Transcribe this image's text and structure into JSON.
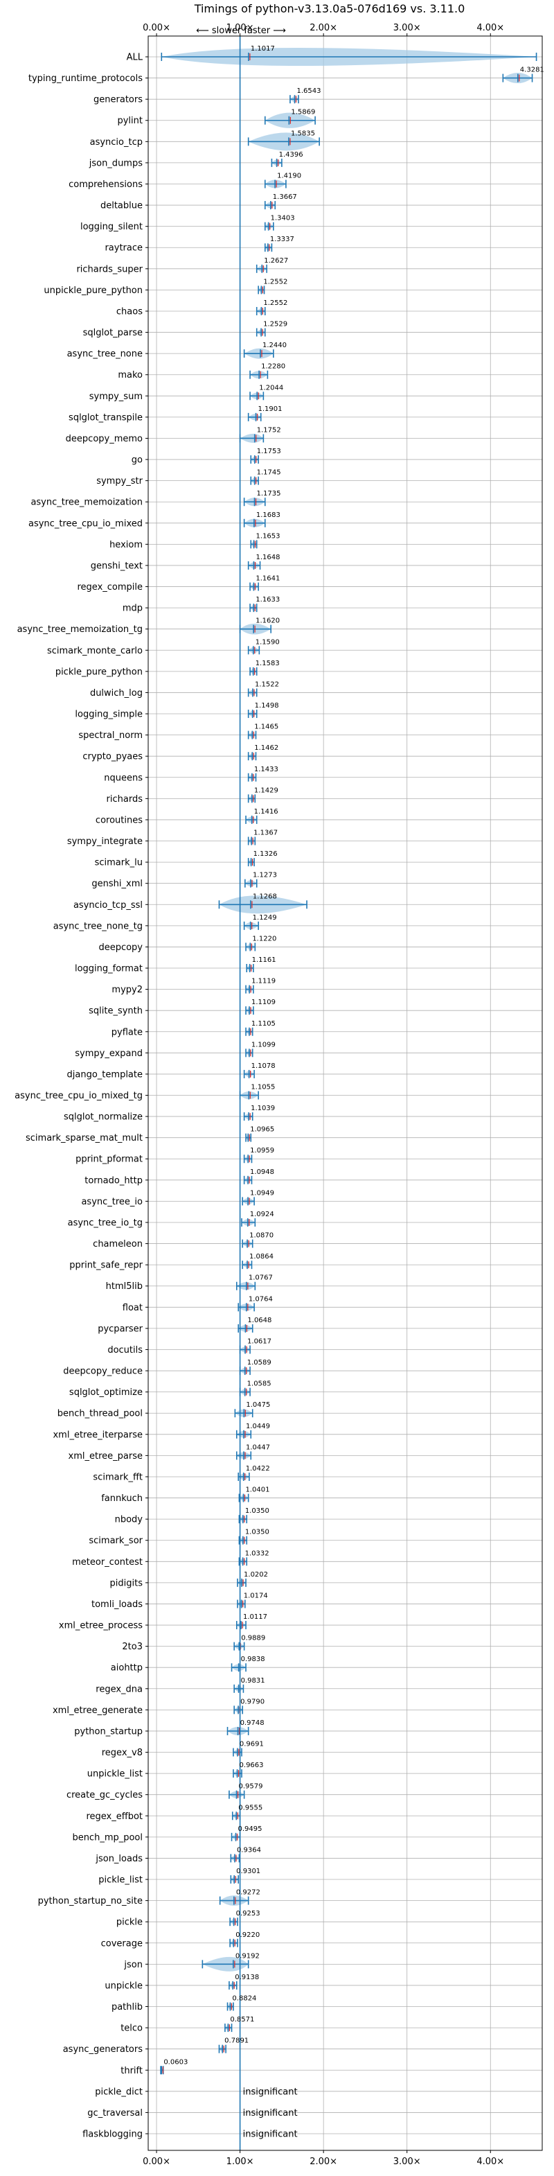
{
  "chart_data": {
    "type": "violin",
    "title": "Timings of python-v3.13.0a5-076d169 vs. 3.11.0",
    "direction_note": "⟵ slower   faster ⟶",
    "xlim": [
      -0.1,
      4.62
    ],
    "xticks": [
      0,
      1,
      2,
      3,
      4
    ],
    "xtick_labels": [
      "0.00×",
      "1.00×",
      "2.00×",
      "3.00×",
      "4.00×"
    ],
    "reference_line": 1.0,
    "grid": true,
    "series_color": "#1f77b4",
    "fill_color": "#a6cbe6",
    "mean_marker_color": "#d62728",
    "categories": [
      "ALL",
      "typing_runtime_protocols",
      "generators",
      "pylint",
      "asyncio_tcp",
      "json_dumps",
      "comprehensions",
      "deltablue",
      "logging_silent",
      "raytrace",
      "richards_super",
      "unpickle_pure_python",
      "chaos",
      "sqlglot_parse",
      "async_tree_none",
      "mako",
      "sympy_sum",
      "sqlglot_transpile",
      "deepcopy_memo",
      "go",
      "sympy_str",
      "async_tree_memoization",
      "async_tree_cpu_io_mixed",
      "hexiom",
      "genshi_text",
      "regex_compile",
      "mdp",
      "async_tree_memoization_tg",
      "scimark_monte_carlo",
      "pickle_pure_python",
      "dulwich_log",
      "logging_simple",
      "spectral_norm",
      "crypto_pyaes",
      "nqueens",
      "richards",
      "coroutines",
      "sympy_integrate",
      "scimark_lu",
      "genshi_xml",
      "asyncio_tcp_ssl",
      "async_tree_none_tg",
      "deepcopy",
      "logging_format",
      "mypy2",
      "sqlite_synth",
      "pyflate",
      "sympy_expand",
      "django_template",
      "async_tree_cpu_io_mixed_tg",
      "sqlglot_normalize",
      "scimark_sparse_mat_mult",
      "pprint_pformat",
      "tornado_http",
      "async_tree_io",
      "async_tree_io_tg",
      "chameleon",
      "pprint_safe_repr",
      "html5lib",
      "float",
      "pycparser",
      "docutils",
      "deepcopy_reduce",
      "sqlglot_optimize",
      "bench_thread_pool",
      "xml_etree_iterparse",
      "xml_etree_parse",
      "scimark_fft",
      "fannkuch",
      "nbody",
      "scimark_sor",
      "meteor_contest",
      "pidigits",
      "tomli_loads",
      "xml_etree_process",
      "2to3",
      "aiohttp",
      "regex_dna",
      "xml_etree_generate",
      "python_startup",
      "regex_v8",
      "unpickle_list",
      "create_gc_cycles",
      "regex_effbot",
      "bench_mp_pool",
      "json_loads",
      "pickle_list",
      "python_startup_no_site",
      "pickle",
      "coverage",
      "json",
      "unpickle",
      "pathlib",
      "telco",
      "async_generators",
      "thrift",
      "pickle_dict",
      "gc_traversal",
      "flaskblogging"
    ],
    "values": [
      1.1017,
      4.3281,
      1.6543,
      1.5869,
      1.5835,
      1.4396,
      1.419,
      1.3667,
      1.3403,
      1.3337,
      1.2627,
      1.2552,
      1.2552,
      1.2529,
      1.244,
      1.228,
      1.2044,
      1.1901,
      1.1752,
      1.1753,
      1.1745,
      1.1735,
      1.1683,
      1.1653,
      1.1648,
      1.1641,
      1.1633,
      1.162,
      1.159,
      1.1583,
      1.1522,
      1.1498,
      1.1465,
      1.1462,
      1.1433,
      1.1429,
      1.1416,
      1.1367,
      1.1326,
      1.1273,
      1.1268,
      1.1249,
      1.122,
      1.1161,
      1.1119,
      1.1109,
      1.1105,
      1.1099,
      1.1078,
      1.1055,
      1.1039,
      1.0965,
      1.0959,
      1.0948,
      1.0949,
      1.0924,
      1.087,
      1.0864,
      1.0767,
      1.0764,
      1.0648,
      1.0617,
      1.0589,
      1.0585,
      1.0475,
      1.0449,
      1.0447,
      1.0422,
      1.0401,
      1.035,
      1.035,
      1.0332,
      1.0202,
      1.0174,
      1.0117,
      0.9889,
      0.9838,
      0.9831,
      0.979,
      0.9748,
      0.9691,
      0.9663,
      0.9579,
      0.9555,
      0.9495,
      0.9364,
      0.9301,
      0.9272,
      0.9253,
      0.922,
      0.9192,
      0.9138,
      0.8824,
      0.8571,
      0.7891,
      0.0603,
      null,
      null,
      null
    ],
    "value_labels": [
      "1.1017",
      "4.3281",
      "1.6543",
      "1.5869",
      "1.5835",
      "1.4396",
      "1.4190",
      "1.3667",
      "1.3403",
      "1.3337",
      "1.2627",
      "1.2552",
      "1.2552",
      "1.2529",
      "1.2440",
      "1.2280",
      "1.2044",
      "1.1901",
      "1.1752",
      "1.1753",
      "1.1745",
      "1.1735",
      "1.1683",
      "1.1653",
      "1.1648",
      "1.1641",
      "1.1633",
      "1.1620",
      "1.1590",
      "1.1583",
      "1.1522",
      "1.1498",
      "1.1465",
      "1.1462",
      "1.1433",
      "1.1429",
      "1.1416",
      "1.1367",
      "1.1326",
      "1.1273",
      "1.1268",
      "1.1249",
      "1.1220",
      "1.1161",
      "1.1119",
      "1.1109",
      "1.1105",
      "1.1099",
      "1.1078",
      "1.1055",
      "1.1039",
      "1.0965",
      "1.0959",
      "1.0948",
      "1.0949",
      "1.0924",
      "1.0870",
      "1.0864",
      "1.0767",
      "1.0764",
      "1.0648",
      "1.0617",
      "1.0589",
      "1.0585",
      "1.0475",
      "1.0449",
      "1.0447",
      "1.0422",
      "1.0401",
      "1.0350",
      "1.0350",
      "1.0332",
      "1.0202",
      "1.0174",
      "1.0117",
      "0.9889",
      "0.9838",
      "0.9831",
      "0.9790",
      "0.9748",
      "0.9691",
      "0.9663",
      "0.9579",
      "0.9555",
      "0.9495",
      "0.9364",
      "0.9301",
      "0.9272",
      "0.9253",
      "0.9220",
      "0.9192",
      "0.9138",
      "0.8824",
      "0.8571",
      "0.7891",
      "0.0603",
      "insignificant",
      "insignificant",
      "insignificant"
    ],
    "ranges": [
      [
        0.06,
        4.55
      ],
      [
        4.15,
        4.5
      ],
      [
        1.6,
        1.7
      ],
      [
        1.3,
        1.9
      ],
      [
        1.1,
        1.95
      ],
      [
        1.38,
        1.5
      ],
      [
        1.3,
        1.55
      ],
      [
        1.3,
        1.42
      ],
      [
        1.3,
        1.4
      ],
      [
        1.3,
        1.38
      ],
      [
        1.2,
        1.32
      ],
      [
        1.22,
        1.29
      ],
      [
        1.2,
        1.3
      ],
      [
        1.2,
        1.3
      ],
      [
        1.05,
        1.4
      ],
      [
        1.12,
        1.33
      ],
      [
        1.12,
        1.28
      ],
      [
        1.1,
        1.25
      ],
      [
        1.0,
        1.28
      ],
      [
        1.13,
        1.22
      ],
      [
        1.13,
        1.22
      ],
      [
        1.05,
        1.3
      ],
      [
        1.05,
        1.3
      ],
      [
        1.13,
        1.2
      ],
      [
        1.1,
        1.24
      ],
      [
        1.12,
        1.22
      ],
      [
        1.12,
        1.2
      ],
      [
        1.0,
        1.37
      ],
      [
        1.1,
        1.23
      ],
      [
        1.12,
        1.2
      ],
      [
        1.1,
        1.2
      ],
      [
        1.1,
        1.2
      ],
      [
        1.1,
        1.19
      ],
      [
        1.1,
        1.19
      ],
      [
        1.1,
        1.19
      ],
      [
        1.1,
        1.18
      ],
      [
        1.07,
        1.2
      ],
      [
        1.1,
        1.18
      ],
      [
        1.1,
        1.17
      ],
      [
        1.06,
        1.2
      ],
      [
        0.75,
        1.8
      ],
      [
        1.05,
        1.22
      ],
      [
        1.07,
        1.18
      ],
      [
        1.08,
        1.16
      ],
      [
        1.07,
        1.16
      ],
      [
        1.07,
        1.16
      ],
      [
        1.07,
        1.15
      ],
      [
        1.07,
        1.15
      ],
      [
        1.05,
        1.17
      ],
      [
        1.0,
        1.22
      ],
      [
        1.05,
        1.15
      ],
      [
        1.07,
        1.13
      ],
      [
        1.05,
        1.14
      ],
      [
        1.05,
        1.14
      ],
      [
        1.03,
        1.17
      ],
      [
        1.02,
        1.18
      ],
      [
        1.03,
        1.15
      ],
      [
        1.03,
        1.14
      ],
      [
        0.96,
        1.18
      ],
      [
        0.98,
        1.17
      ],
      [
        0.98,
        1.15
      ],
      [
        1.0,
        1.12
      ],
      [
        1.0,
        1.12
      ],
      [
        1.0,
        1.12
      ],
      [
        0.94,
        1.15
      ],
      [
        0.96,
        1.13
      ],
      [
        0.96,
        1.13
      ],
      [
        0.98,
        1.11
      ],
      [
        0.99,
        1.1
      ],
      [
        0.99,
        1.08
      ],
      [
        0.99,
        1.08
      ],
      [
        0.99,
        1.08
      ],
      [
        0.97,
        1.07
      ],
      [
        0.97,
        1.06
      ],
      [
        0.96,
        1.07
      ],
      [
        0.93,
        1.05
      ],
      [
        0.9,
        1.07
      ],
      [
        0.93,
        1.04
      ],
      [
        0.93,
        1.03
      ],
      [
        0.85,
        1.1
      ],
      [
        0.92,
        1.02
      ],
      [
        0.92,
        1.02
      ],
      [
        0.87,
        1.05
      ],
      [
        0.91,
        1.0
      ],
      [
        0.9,
        1.0
      ],
      [
        0.89,
        0.99
      ],
      [
        0.89,
        0.98
      ],
      [
        0.76,
        1.1
      ],
      [
        0.88,
        0.97
      ],
      [
        0.88,
        0.97
      ],
      [
        0.55,
        1.1
      ],
      [
        0.87,
        0.96
      ],
      [
        0.85,
        0.92
      ],
      [
        0.82,
        0.9
      ],
      [
        0.75,
        0.83
      ],
      [
        0.05,
        0.08
      ],
      null,
      null,
      null
    ]
  }
}
